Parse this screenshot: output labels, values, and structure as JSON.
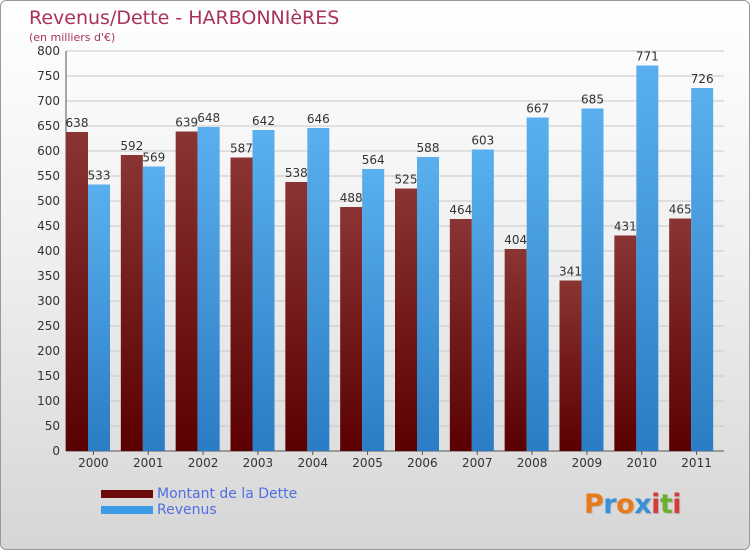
{
  "chart_data": {
    "type": "bar",
    "title": "Revenus/Dette - HARBONNIèRES",
    "subtitle": "(en milliers d'€)",
    "categories": [
      "2000",
      "2001",
      "2002",
      "2003",
      "2004",
      "2005",
      "2006",
      "2007",
      "2008",
      "2009",
      "2010",
      "2011"
    ],
    "series": [
      {
        "name": "Montant de la Dette",
        "color": "#7a1414",
        "values": [
          638,
          592,
          639,
          587,
          538,
          488,
          525,
          464,
          404,
          341,
          431,
          465
        ]
      },
      {
        "name": "Revenus",
        "color": "#3c9de6",
        "values": [
          533,
          569,
          648,
          642,
          646,
          564,
          588,
          603,
          667,
          685,
          771,
          726
        ]
      }
    ],
    "ylim": [
      0,
      800
    ],
    "yticks": [
      0,
      50,
      100,
      150,
      200,
      250,
      300,
      350,
      400,
      450,
      500,
      550,
      600,
      650,
      700,
      750,
      800
    ],
    "grid": true,
    "legend_position": "bottom-left"
  },
  "logo": {
    "letters": [
      "P",
      "r",
      "o",
      "x",
      "i",
      "t",
      "i"
    ],
    "colors": [
      "#e87a1a",
      "#3a8fd8",
      "#e87a1a",
      "#3a8fd8",
      "#d43c3c",
      "#6ab02e",
      "#d43c3c"
    ]
  }
}
